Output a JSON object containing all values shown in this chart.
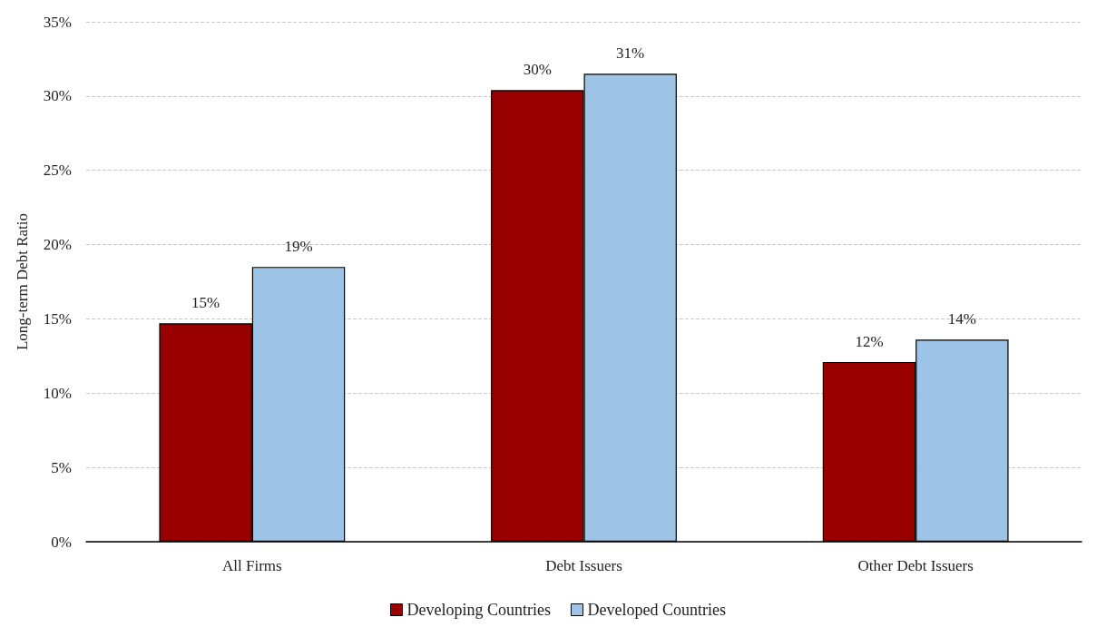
{
  "chart_data": {
    "type": "bar",
    "ylabel": "Long-term Debt Ratio",
    "categories": [
      "All Firms",
      "Debt Issuers",
      "Other Debt Issuers"
    ],
    "series": [
      {
        "name": "Developing Countries",
        "color": "#990000",
        "values": [
          14.7,
          30.4,
          12.1
        ],
        "value_labels": [
          "15%",
          "30%",
          "12%"
        ]
      },
      {
        "name": "Developed Countries",
        "color": "#9dc3e6",
        "values": [
          18.5,
          31.5,
          13.6
        ],
        "value_labels": [
          "19%",
          "31%",
          "14%"
        ]
      }
    ],
    "ylim": [
      0,
      35
    ],
    "yticks": [
      {
        "value": 0,
        "label": "0%"
      },
      {
        "value": 5,
        "label": "5%"
      },
      {
        "value": 10,
        "label": "10%"
      },
      {
        "value": 15,
        "label": "15%"
      },
      {
        "value": 20,
        "label": "20%"
      },
      {
        "value": 25,
        "label": "25%"
      },
      {
        "value": 30,
        "label": "30%"
      },
      {
        "value": 35,
        "label": "35%"
      }
    ],
    "grid": "y",
    "legend": "bottom"
  }
}
